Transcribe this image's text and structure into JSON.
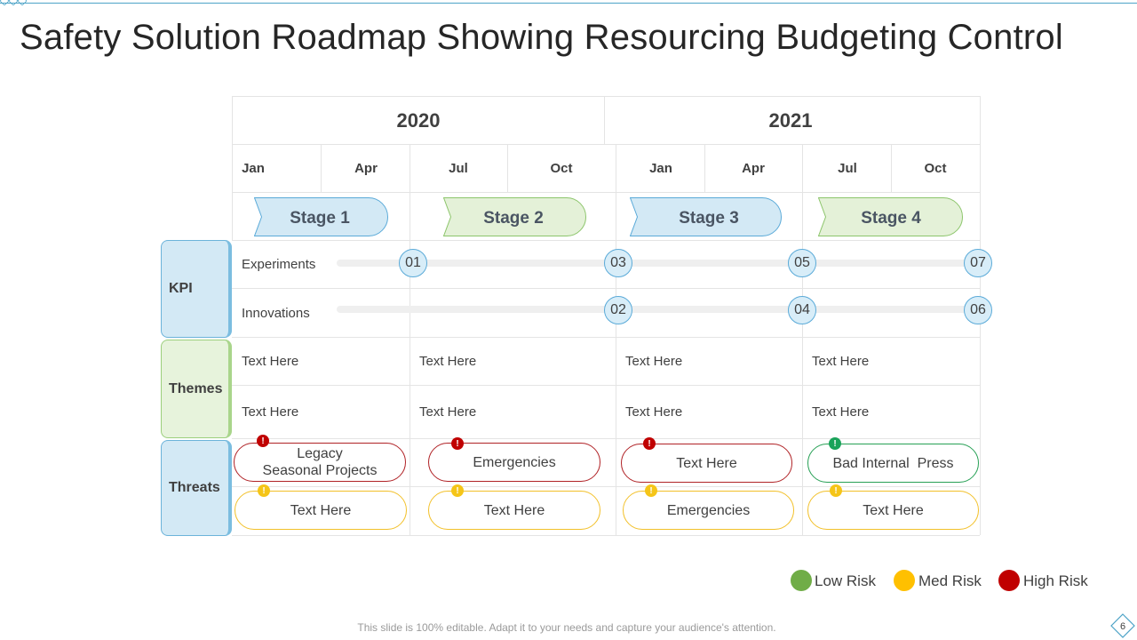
{
  "title": "Safety Solution Roadmap Showing Resourcing Budgeting Control",
  "years": [
    "2020",
    "2021"
  ],
  "months": [
    "Jan",
    "Apr",
    "Jul",
    "Oct",
    "Jan",
    "Apr",
    "Jul",
    "Oct"
  ],
  "stages": [
    "Stage 1",
    "Stage 2",
    "Stage 3",
    "Stage 4"
  ],
  "row_headers": {
    "kpi": "KPI",
    "themes": "Themes",
    "threats": "Threats"
  },
  "kpi": {
    "experiments_label": "Experiments",
    "innovations_label": "Innovations",
    "experiments_milestones": [
      "01",
      "03",
      "05",
      "07"
    ],
    "innovations_milestones": [
      "02",
      "04",
      "06"
    ]
  },
  "themes": {
    "row1": [
      "Text Here",
      "Text Here",
      "Text Here",
      "Text Here"
    ],
    "row2": [
      "Text Here",
      "Text Here",
      "Text Here",
      "Text Here"
    ]
  },
  "threats": {
    "row1": [
      {
        "line1": "Legacy",
        "line2": "Seasonal Projects",
        "risk": "high"
      },
      {
        "line1": "Emergencies",
        "line2": "",
        "risk": "high"
      },
      {
        "line1": "Text Here",
        "line2": "",
        "risk": "high"
      },
      {
        "line1": "Bad Internal  Press",
        "line2": "",
        "risk": "low"
      }
    ],
    "row2": [
      {
        "line1": "Text Here",
        "line2": "",
        "risk": "med"
      },
      {
        "line1": "Text Here",
        "line2": "",
        "risk": "med"
      },
      {
        "line1": "Emergencies",
        "line2": "",
        "risk": "med"
      },
      {
        "line1": "Text Here",
        "line2": "",
        "risk": "med"
      }
    ]
  },
  "risk_glyph": "!",
  "legend": [
    {
      "label": "Low Risk",
      "color": "#70ad47"
    },
    {
      "label": "Med Risk",
      "color": "#ffc000"
    },
    {
      "label": "High Risk",
      "color": "#c00000"
    }
  ],
  "colors": {
    "stage_blue_fill": "#d3e9f5",
    "stage_blue_stroke": "#5aaad8",
    "stage_green_fill": "#e4f1d8",
    "stage_green_stroke": "#8cc56b"
  },
  "footer": "This slide is 100% editable. Adapt it to your needs and capture your audience's attention.",
  "page_number": "6"
}
